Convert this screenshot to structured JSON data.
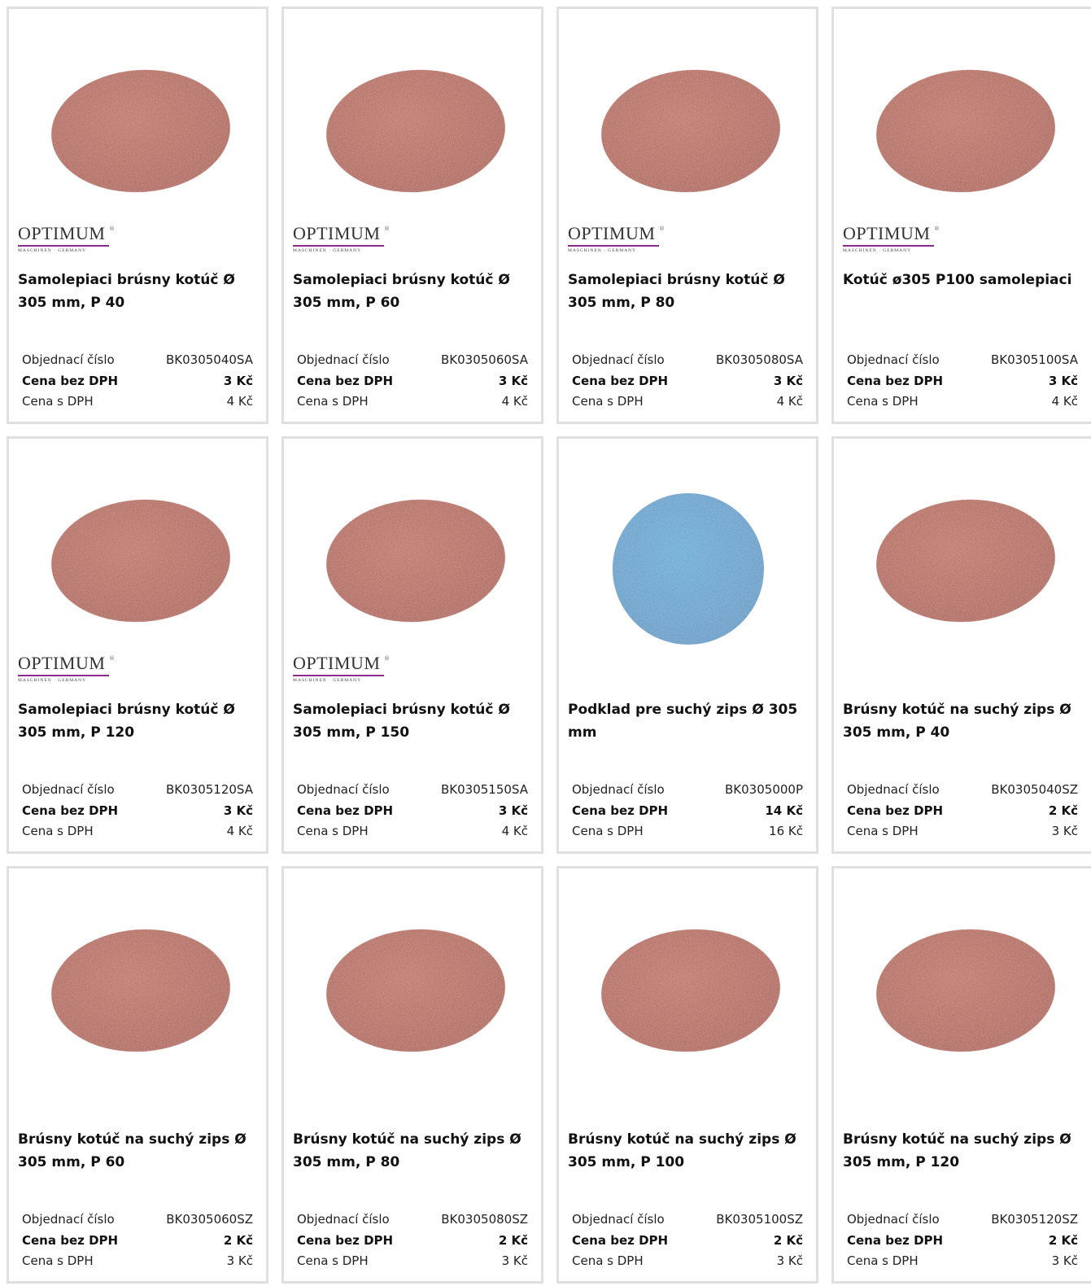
{
  "labels": {
    "order_no": "Objednací číslo",
    "price_excl": "Cena bez DPH",
    "price_incl": "Cena s DPH"
  },
  "products": [
    {
      "image_color": "red",
      "brand": {
        "name": "OPTIMUM",
        "mark": "®",
        "tagline": "MASCHINEN · GERMANY"
      },
      "title": "Samolepiaci brúsny kotúč Ø 305 mm, P 40",
      "order_no": "BK0305040SA",
      "price_excl": "3 Kč",
      "price_incl": "4 Kč"
    },
    {
      "image_color": "red",
      "brand": {
        "name": "OPTIMUM",
        "mark": "®",
        "tagline": "MASCHINEN · GERMANY"
      },
      "title": "Samolepiaci brúsny kotúč Ø 305 mm, P 60",
      "order_no": "BK0305060SA",
      "price_excl": "3 Kč",
      "price_incl": "4 Kč"
    },
    {
      "image_color": "red",
      "brand": {
        "name": "OPTIMUM",
        "mark": "®",
        "tagline": "MASCHINEN · GERMANY"
      },
      "title": "Samolepiaci brúsny kotúč Ø 305 mm, P 80",
      "order_no": "BK0305080SA",
      "price_excl": "3 Kč",
      "price_incl": "4 Kč"
    },
    {
      "image_color": "red",
      "brand": {
        "name": "OPTIMUM",
        "mark": "®",
        "tagline": "MASCHINEN · GERMANY"
      },
      "title": "Kotúč ø305 P100 samolepiaci",
      "order_no": "BK0305100SA",
      "price_excl": "3 Kč",
      "price_incl": "4 Kč"
    },
    {
      "image_color": "red",
      "brand": {
        "name": "OPTIMUM",
        "mark": "®",
        "tagline": "MASCHINEN · GERMANY"
      },
      "title": "Samolepiaci brúsny kotúč Ø 305 mm, P 120",
      "order_no": "BK0305120SA",
      "price_excl": "3 Kč",
      "price_incl": "4 Kč"
    },
    {
      "image_color": "red",
      "brand": {
        "name": "OPTIMUM",
        "mark": "®",
        "tagline": "MASCHINEN · GERMANY"
      },
      "title": "Samolepiaci brúsny kotúč Ø 305 mm, P 150",
      "order_no": "BK0305150SA",
      "price_excl": "3 Kč",
      "price_incl": "4 Kč"
    },
    {
      "image_color": "blue",
      "title": "Podklad pre suchý zips Ø 305 mm",
      "order_no": "BK0305000P",
      "price_excl": "14 Kč",
      "price_incl": "16 Kč"
    },
    {
      "image_color": "red",
      "title": "Brúsny kotúč na suchý zips Ø 305 mm, P 40",
      "order_no": "BK0305040SZ",
      "price_excl": "2 Kč",
      "price_incl": "3 Kč"
    },
    {
      "image_color": "red",
      "title": "Brúsny kotúč na suchý zips Ø 305 mm, P 60",
      "order_no": "BK0305060SZ",
      "price_excl": "2 Kč",
      "price_incl": "3 Kč"
    },
    {
      "image_color": "red",
      "title": "Brúsny kotúč na suchý zips Ø 305 mm, P 80",
      "order_no": "BK0305080SZ",
      "price_excl": "2 Kč",
      "price_incl": "3 Kč"
    },
    {
      "image_color": "red",
      "title": "Brúsny kotúč na suchý zips Ø 305 mm, P 100",
      "order_no": "BK0305100SZ",
      "price_excl": "2 Kč",
      "price_incl": "3 Kč"
    },
    {
      "image_color": "red",
      "title": "Brúsny kotúč na suchý zips Ø 305 mm, P 120",
      "order_no": "BK0305120SZ",
      "price_excl": "2 Kč",
      "price_incl": "3 Kč"
    }
  ]
}
